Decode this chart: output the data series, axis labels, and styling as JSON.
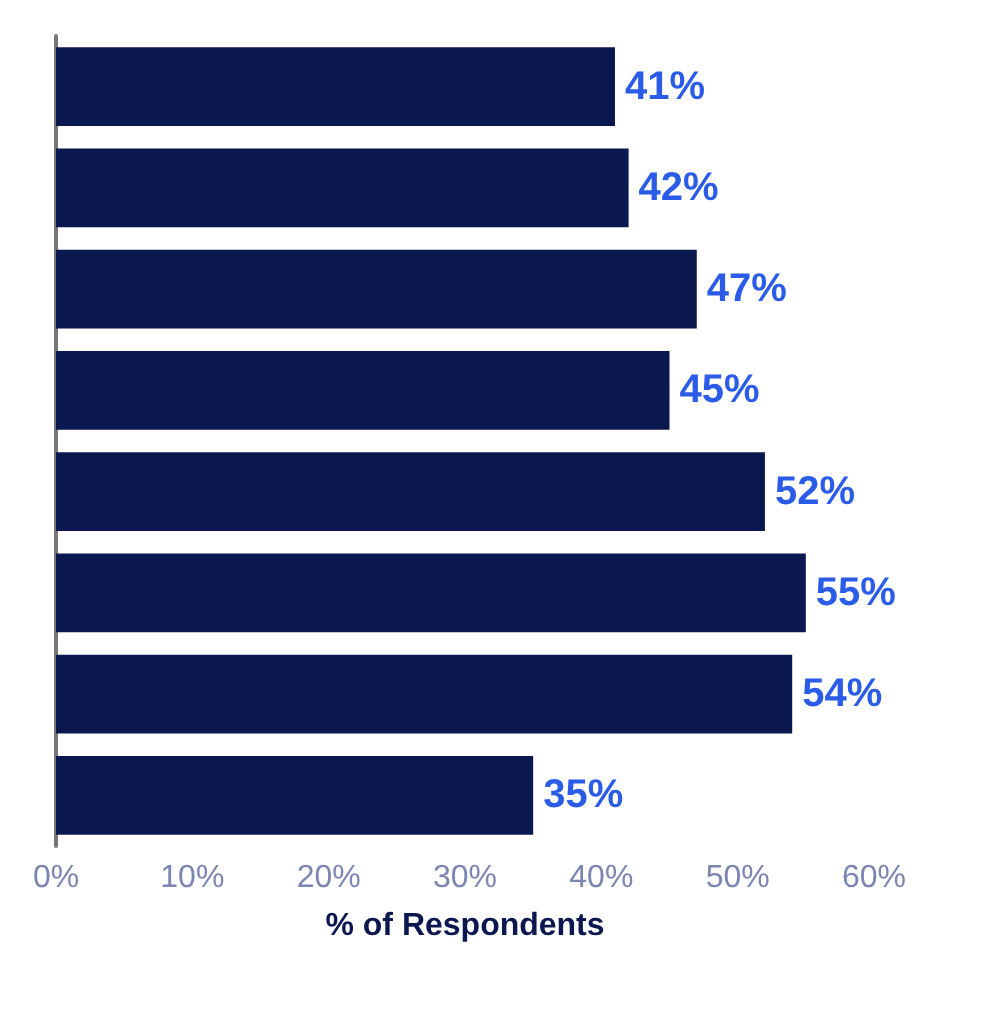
{
  "chart_data": {
    "type": "bar",
    "orientation": "horizontal",
    "xlabel": "% of Respondents",
    "categories": [
      null,
      null,
      null,
      null,
      null,
      null,
      null,
      null
    ],
    "values": [
      41,
      42,
      47,
      45,
      52,
      55,
      54,
      35
    ],
    "value_labels": [
      "41%",
      "42%",
      "47%",
      "45%",
      "52%",
      "55%",
      "54%",
      "35%"
    ],
    "color": "#0b174f",
    "xlim": [
      0,
      60
    ],
    "xticks": [
      {
        "value": 0,
        "label": "0%"
      },
      {
        "value": 10,
        "label": "10%"
      },
      {
        "value": 20,
        "label": "20%"
      },
      {
        "value": 30,
        "label": "30%"
      },
      {
        "value": 40,
        "label": "40%"
      },
      {
        "value": 50,
        "label": "50%"
      },
      {
        "value": 60,
        "label": "60%"
      }
    ],
    "grid": false
  }
}
